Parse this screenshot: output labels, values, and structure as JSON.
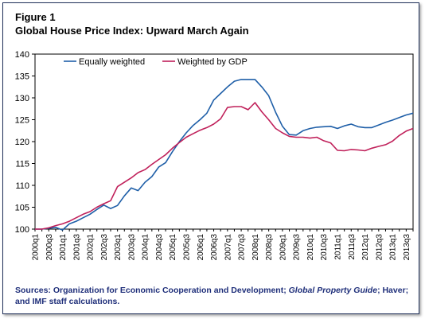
{
  "figure": {
    "label": "Figure 1",
    "title": "Global House Price Index: Upward March Again",
    "source_part1": "Sources: Organization for Economic Cooperation and Development; ",
    "source_italic": "Global Property Guide",
    "source_part2": "; Haver; and IMF staff calculations."
  },
  "chart_data": {
    "type": "line",
    "title": "Global House Price Index: Upward March Again",
    "xlabel": "",
    "ylabel": "",
    "ylim": [
      100,
      140
    ],
    "yticks": [
      100,
      105,
      110,
      115,
      120,
      125,
      130,
      135,
      140
    ],
    "grid": false,
    "legend_position": "top-left",
    "x": [
      "2000q1",
      "2000q2",
      "2000q3",
      "2000q4",
      "2001q1",
      "2001q2",
      "2001q3",
      "2001q4",
      "2002q1",
      "2002q2",
      "2002q3",
      "2002q4",
      "2003q1",
      "2003q2",
      "2003q3",
      "2003q4",
      "2004q1",
      "2004q2",
      "2004q3",
      "2004q4",
      "2005q1",
      "2005q2",
      "2005q3",
      "2005q4",
      "2006q1",
      "2006q2",
      "2006q3",
      "2006q4",
      "2007q1",
      "2007q2",
      "2007q3",
      "2007q4",
      "2008q1",
      "2008q2",
      "2008q3",
      "2008q4",
      "2009q1",
      "2009q2",
      "2009q3",
      "2009q4",
      "2010q1",
      "2010q2",
      "2010q3",
      "2010q4",
      "2011q1",
      "2011q2",
      "2011q3",
      "2011q4",
      "2012q1",
      "2012q2",
      "2012q3",
      "2012q4",
      "2013q1",
      "2013q2",
      "2013q3",
      "2013q4"
    ],
    "tick_labels": [
      "2000q1",
      "2000q3",
      "2001q1",
      "2001q3",
      "2002q1",
      "2002q3",
      "2003q1",
      "2003q3",
      "2004q1",
      "2004q3",
      "2005q1",
      "2005q3",
      "2006q1",
      "2006q3",
      "2007q1",
      "2007q3",
      "2008q1",
      "2008q3",
      "2009q1",
      "2009q3",
      "2010q1",
      "2010q3",
      "2011q1",
      "2011q3",
      "2012q1",
      "2012q3",
      "2013q1",
      "2013q3"
    ],
    "series": [
      {
        "name": "Equally weighted",
        "color": "#1f5fa8",
        "values": [
          100,
          100,
          100.2,
          100.4,
          99.8,
          101.2,
          101.8,
          102.6,
          103.4,
          104.5,
          105.5,
          104.7,
          105.4,
          107.6,
          109.4,
          108.8,
          110.7,
          112.0,
          114.2,
          115.2,
          117.7,
          120.0,
          122.0,
          123.7,
          125.0,
          126.5,
          129.5,
          131.0,
          132.5,
          133.8,
          134.2,
          134.2,
          134.2,
          132.5,
          130.5,
          126.7,
          123.5,
          121.6,
          121.5,
          122.5,
          123.0,
          123.3,
          123.4,
          123.5,
          123.0,
          123.6,
          124.0,
          123.4,
          123.2,
          123.2,
          123.8,
          124.4,
          124.9,
          125.5,
          126.1,
          126.5
        ]
      },
      {
        "name": "Weighted by GDP",
        "color": "#c0205a",
        "values": [
          100,
          100,
          100.3,
          100.8,
          101.2,
          101.8,
          102.6,
          103.4,
          104.0,
          105.0,
          105.8,
          106.5,
          109.7,
          110.7,
          111.7,
          112.9,
          113.6,
          114.8,
          115.9,
          117.0,
          118.5,
          119.8,
          121.0,
          121.8,
          122.6,
          123.2,
          124.0,
          125.2,
          127.8,
          128.0,
          128.0,
          127.3,
          128.9,
          126.8,
          125.0,
          123.0,
          122.0,
          121.2,
          121.0,
          121.0,
          120.8,
          121.0,
          120.2,
          119.7,
          118.0,
          117.9,
          118.2,
          118.1,
          117.9,
          118.5,
          118.9,
          119.3,
          120.1,
          121.4,
          122.4,
          123.0
        ]
      }
    ]
  }
}
